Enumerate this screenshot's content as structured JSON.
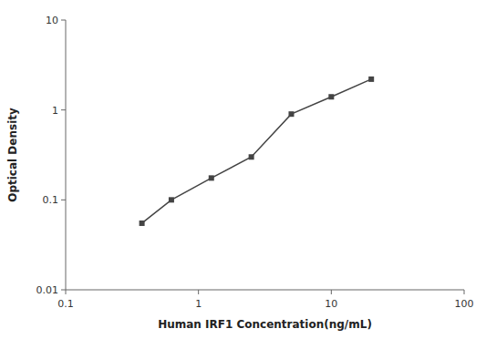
{
  "chart_data": {
    "type": "line",
    "xlabel": "Human IRF1 Concentration(ng/mL)",
    "ylabel": "Optical Density",
    "x": [
      0.375,
      0.625,
      1.25,
      2.5,
      5,
      10,
      20
    ],
    "values": [
      0.055,
      0.1,
      0.175,
      0.3,
      0.9,
      1.4,
      2.2
    ],
    "color": "#444444",
    "marker": "square",
    "line_style": "solid",
    "log": true,
    "grid": false,
    "xlim": [
      0.1,
      100
    ],
    "ylim": [
      0.01,
      10
    ],
    "xticks": [
      0.1,
      1,
      10,
      100
    ],
    "yticks": [
      0.01,
      0.1,
      1,
      10
    ]
  }
}
